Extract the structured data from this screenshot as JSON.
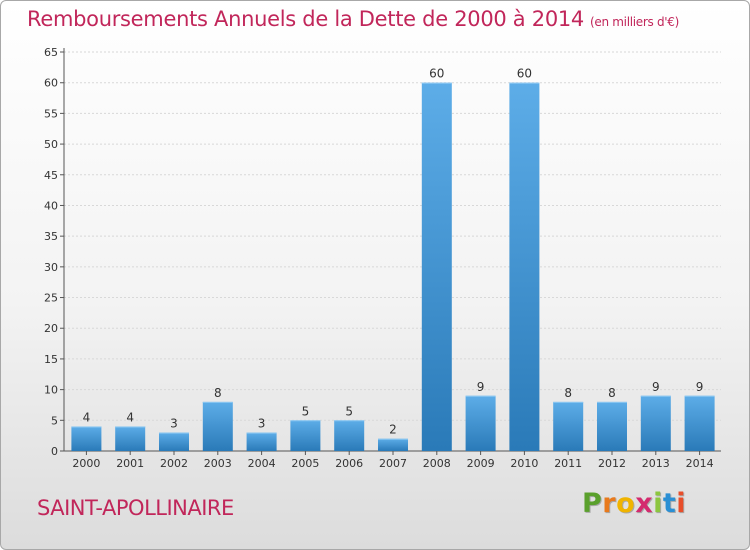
{
  "header": {
    "title": "Remboursements Annuels de la Dette de 2000 à 2014",
    "unit": "(en milliers d'€)"
  },
  "footer": {
    "commune": "SAINT-APOLLINAIRE",
    "logo_letters": [
      "P",
      "r",
      "o",
      "x",
      "i",
      "t",
      "i"
    ],
    "logo_colors": [
      "#5aa02c",
      "#e87a1d",
      "#f0b400",
      "#d42b6e",
      "#8cc63f",
      "#2a8fd4",
      "#e84e2a"
    ]
  },
  "colors": {
    "bar_light": "#5dade8",
    "bar_dark": "#2a7ab8",
    "title": "#c1265a",
    "grid": "#d8d8d8"
  },
  "chart_data": {
    "type": "bar",
    "categories": [
      "2000",
      "2001",
      "2002",
      "2003",
      "2004",
      "2005",
      "2006",
      "2007",
      "2008",
      "2009",
      "2010",
      "2011",
      "2012",
      "2013",
      "2014"
    ],
    "values": [
      4,
      4,
      3,
      8,
      3,
      5,
      5,
      2,
      60,
      9,
      60,
      8,
      8,
      9,
      9
    ],
    "data_labels": [
      "4",
      "4",
      "3",
      "8",
      "3",
      "5",
      "5",
      "2",
      "60",
      "9",
      "60",
      "8",
      "8",
      "9",
      "9"
    ],
    "title": "Remboursements Annuels de la Dette de 2000 à 2014",
    "xlabel": "",
    "ylabel": "",
    "ylim": [
      0,
      65
    ],
    "yticks": [
      0,
      5,
      10,
      15,
      20,
      25,
      30,
      35,
      40,
      45,
      50,
      55,
      60,
      65
    ],
    "grid": true,
    "legend": "none"
  }
}
